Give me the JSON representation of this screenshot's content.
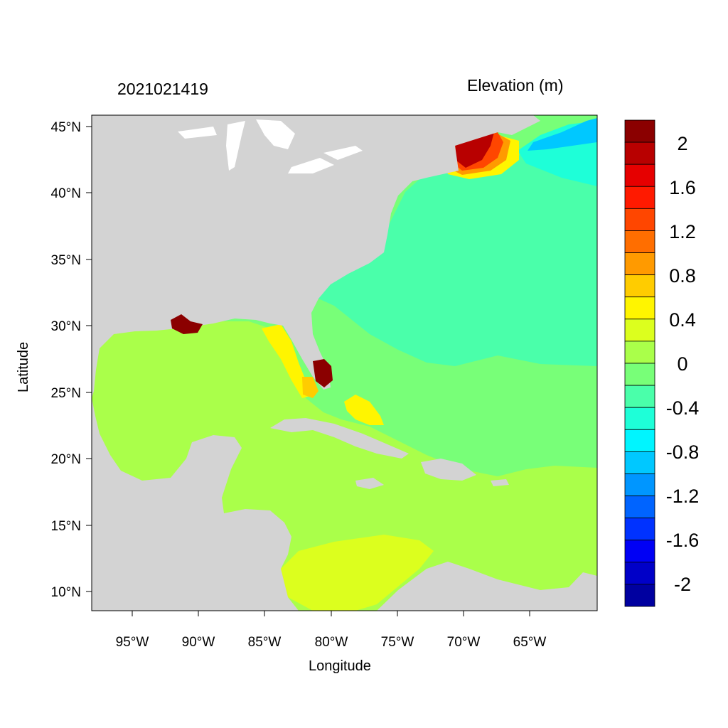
{
  "timestamp": "2021021419",
  "variable_label": "Elevation (m)",
  "x_axis_label": "Longitude",
  "y_axis_label": "Latitude",
  "lon_ticks": [
    "95°W",
    "90°W",
    "85°W",
    "80°W",
    "75°W",
    "70°W",
    "65°W"
  ],
  "lat_ticks": [
    "45°N",
    "40°N",
    "35°N",
    "30°N",
    "25°N",
    "20°N",
    "15°N",
    "10°N"
  ],
  "colorbar": {
    "labels": [
      "2",
      "1.6",
      "1.2",
      "0.8",
      "0.4",
      "0",
      "-0.4",
      "-0.8",
      "-1.2",
      "-1.6",
      "-2"
    ],
    "colors_top_to_bottom": [
      "#8b0000",
      "#b80000",
      "#e60000",
      "#ff1a00",
      "#ff4600",
      "#ff6e00",
      "#ff9a00",
      "#ffcc00",
      "#fff500",
      "#dcff1e",
      "#aaff4a",
      "#78ff78",
      "#4affaa",
      "#1effd8",
      "#00f5ff",
      "#00c8ff",
      "#0096ff",
      "#0064ff",
      "#0032ff",
      "#0000f5",
      "#0000c8",
      "#0000a0"
    ]
  },
  "colors": {
    "land": "#d3d3d3",
    "water_lakes": "#ffffff"
  }
}
